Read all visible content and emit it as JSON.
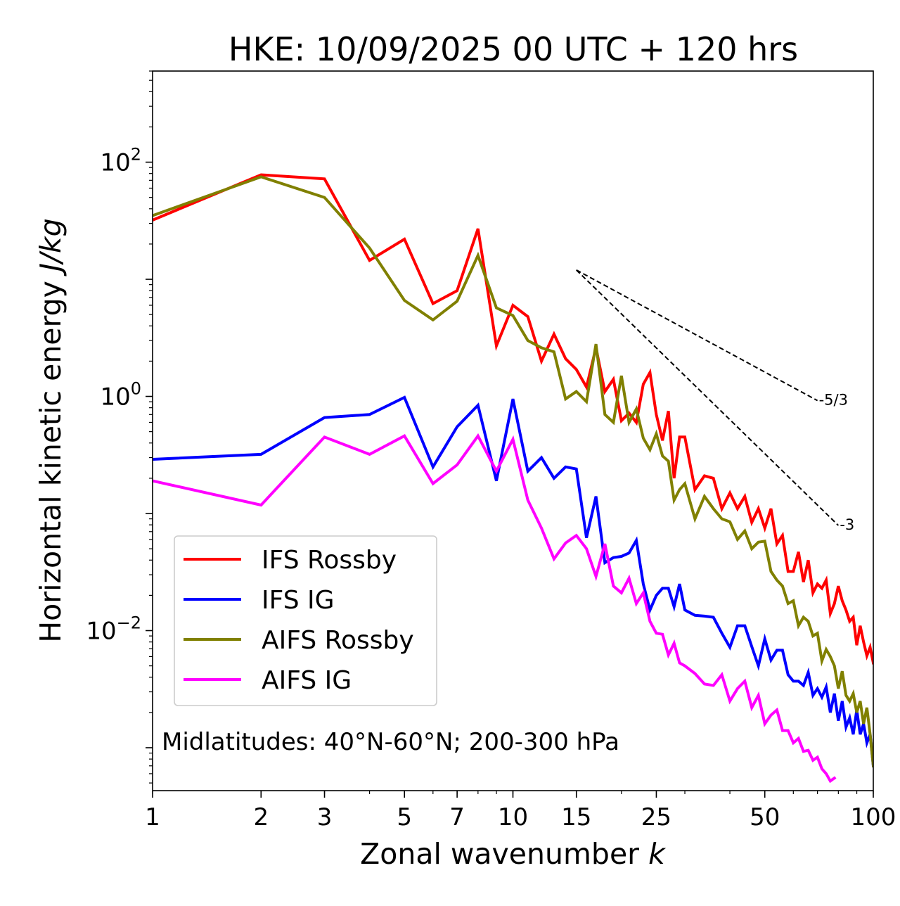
{
  "chart_data": {
    "type": "line",
    "title": "HKE: 10/09/2025 00 UTC + 120 hrs",
    "xlabel_text": "Zonal wavenumber ",
    "xlabel_var": "k",
    "ylabel_text": "Horizontal kinetic energy ",
    "ylabel_unit": "J/kg",
    "xscale": "log",
    "yscale": "log",
    "xlim": [
      1,
      100
    ],
    "ylim": [
      0.00043,
      600
    ],
    "xticks": [
      1,
      2,
      3,
      5,
      7,
      10,
      15,
      25,
      50,
      100
    ],
    "xtick_labels": [
      "1",
      "2",
      "3",
      "5",
      "7",
      "10",
      "15",
      "25",
      "50",
      "100"
    ],
    "yticks": [
      {
        "value": 100,
        "base": "10",
        "exp": "2"
      },
      {
        "value": 1,
        "base": "10",
        "exp": "0"
      },
      {
        "value": 0.01,
        "base": "10",
        "exp": "−2"
      }
    ],
    "annotation": "Midlatitudes: 40°N-60°N; 200-300 hPa",
    "legend_position": "lower-left",
    "reference_lines": [
      {
        "label": "-5/3",
        "x_start": 15,
        "y_start": 12,
        "slope": -1.6667,
        "x_end": 70
      },
      {
        "label": "-3",
        "x_start": 15,
        "y_start": 12,
        "slope": -3,
        "x_end": 80
      }
    ],
    "series": [
      {
        "name": "IFS Rossby",
        "color": "#ff0000",
        "x": [
          1,
          2,
          3,
          4,
          5,
          6,
          7,
          8,
          9,
          10,
          11,
          12,
          13,
          14,
          15,
          16,
          17,
          18,
          19,
          20,
          21,
          22,
          23,
          24,
          25,
          26,
          27,
          28,
          29,
          30,
          32,
          34,
          36,
          38,
          40,
          42,
          44,
          46,
          48,
          50,
          52,
          54,
          56,
          58,
          60,
          62,
          64,
          66,
          68,
          70,
          72,
          74,
          76,
          78,
          80,
          82,
          84,
          86,
          88,
          90,
          92,
          94,
          96,
          98,
          100
        ],
        "y": [
          32,
          78,
          72,
          14.5,
          22,
          6.2,
          8,
          27,
          2.7,
          6,
          4.8,
          2,
          3.4,
          2.1,
          1.7,
          1.2,
          2.6,
          1.1,
          1.4,
          0.62,
          0.72,
          0.6,
          1.27,
          1.6,
          0.7,
          0.42,
          0.75,
          0.2,
          0.45,
          0.45,
          0.16,
          0.21,
          0.2,
          0.11,
          0.15,
          0.11,
          0.14,
          0.084,
          0.11,
          0.075,
          0.11,
          0.055,
          0.065,
          0.032,
          0.032,
          0.047,
          0.026,
          0.04,
          0.021,
          0.025,
          0.023,
          0.027,
          0.014,
          0.017,
          0.024,
          0.018,
          0.015,
          0.012,
          0.013,
          0.0075,
          0.011,
          0.008,
          0.0061,
          0.0072,
          0.0053
        ]
      },
      {
        "name": "IFS IG",
        "color": "#0000ff",
        "x": [
          1,
          2,
          3,
          4,
          5,
          6,
          7,
          8,
          9,
          10,
          11,
          12,
          13,
          14,
          15,
          16,
          17,
          18,
          19,
          20,
          21,
          22,
          23,
          24,
          25,
          26,
          27,
          28,
          29,
          30,
          32,
          34,
          36,
          38,
          40,
          42,
          44,
          46,
          48,
          50,
          52,
          54,
          56,
          58,
          60,
          62,
          64,
          66,
          68,
          70,
          72,
          74,
          76,
          78,
          80,
          82,
          84,
          86,
          88,
          90,
          92,
          94,
          96,
          98,
          100
        ],
        "y": [
          0.29,
          0.32,
          0.66,
          0.7,
          0.98,
          0.25,
          0.55,
          0.84,
          0.19,
          0.95,
          0.23,
          0.3,
          0.2,
          0.25,
          0.24,
          0.062,
          0.14,
          0.038,
          0.042,
          0.043,
          0.046,
          0.059,
          0.025,
          0.015,
          0.02,
          0.023,
          0.023,
          0.016,
          0.025,
          0.015,
          0.0135,
          0.0133,
          0.013,
          0.0095,
          0.0072,
          0.011,
          0.011,
          0.0073,
          0.005,
          0.0085,
          0.0056,
          0.0068,
          0.0068,
          0.0042,
          0.0037,
          0.0037,
          0.0034,
          0.0044,
          0.0028,
          0.0032,
          0.0027,
          0.0033,
          0.002,
          0.0029,
          0.0017,
          0.0025,
          0.0015,
          0.0018,
          0.0013,
          0.0021,
          0.0013,
          0.0016,
          0.0011,
          0.0013,
          0.0007
        ]
      },
      {
        "name": "AIFS Rossby",
        "color": "#808000",
        "x": [
          1,
          2,
          3,
          4,
          5,
          6,
          7,
          8,
          9,
          10,
          11,
          12,
          13,
          14,
          15,
          16,
          17,
          18,
          19,
          20,
          21,
          22,
          23,
          24,
          25,
          26,
          27,
          28,
          29,
          30,
          32,
          34,
          36,
          38,
          40,
          42,
          44,
          46,
          48,
          50,
          52,
          54,
          56,
          58,
          60,
          62,
          64,
          66,
          68,
          70,
          72,
          74,
          76,
          78,
          80,
          82,
          84,
          86,
          88,
          90,
          92,
          94,
          96,
          98,
          100
        ],
        "y": [
          35,
          75,
          50,
          18.5,
          6.6,
          4.5,
          6.5,
          16,
          5.7,
          4.9,
          3,
          2.6,
          2.4,
          0.95,
          1.1,
          0.9,
          2.8,
          0.7,
          0.6,
          1.5,
          0.6,
          0.78,
          0.44,
          0.35,
          0.48,
          0.31,
          0.28,
          0.13,
          0.16,
          0.18,
          0.09,
          0.14,
          0.11,
          0.09,
          0.085,
          0.06,
          0.071,
          0.05,
          0.057,
          0.058,
          0.032,
          0.027,
          0.024,
          0.017,
          0.018,
          0.011,
          0.013,
          0.012,
          0.009,
          0.0095,
          0.0055,
          0.0069,
          0.006,
          0.005,
          0.0032,
          0.0045,
          0.0028,
          0.0025,
          0.0029,
          0.002,
          0.0025,
          0.0016,
          0.0022,
          0.0013,
          0.0007
        ]
      },
      {
        "name": "AIFS IG",
        "color": "#ff00ff",
        "x": [
          1,
          2,
          3,
          4,
          5,
          6,
          7,
          8,
          9,
          10,
          11,
          12,
          13,
          14,
          15,
          16,
          17,
          18,
          19,
          20,
          21,
          22,
          23,
          24,
          25,
          26,
          27,
          28,
          29,
          30,
          32,
          34,
          36,
          38,
          40,
          42,
          44,
          46,
          48,
          50,
          52,
          54,
          56,
          58,
          60,
          62,
          64,
          66,
          68,
          70,
          72,
          74,
          76,
          78
        ],
        "y": [
          0.19,
          0.118,
          0.45,
          0.32,
          0.46,
          0.18,
          0.26,
          0.46,
          0.23,
          0.43,
          0.13,
          0.075,
          0.041,
          0.056,
          0.065,
          0.05,
          0.029,
          0.055,
          0.024,
          0.021,
          0.028,
          0.017,
          0.021,
          0.012,
          0.0095,
          0.0093,
          0.0062,
          0.0078,
          0.0053,
          0.005,
          0.0043,
          0.0035,
          0.0034,
          0.0042,
          0.0025,
          0.0032,
          0.0037,
          0.0022,
          0.0028,
          0.0016,
          0.0019,
          0.0021,
          0.0014,
          0.0014,
          0.0011,
          0.0012,
          0.00093,
          0.00095,
          0.00078,
          0.00083,
          0.00066,
          0.0006,
          0.00052,
          0.00055
        ]
      }
    ]
  }
}
